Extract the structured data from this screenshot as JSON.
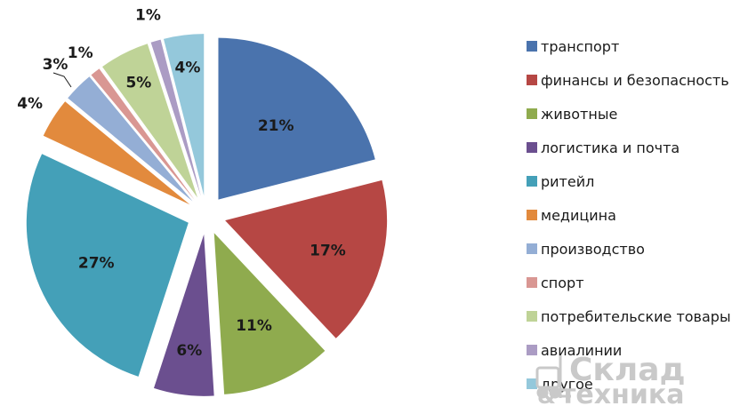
{
  "chart_data": {
    "type": "pie",
    "exploded": true,
    "categories": [
      "транспорт",
      "финансы и безопасность",
      "животные",
      "логистика и почта",
      "ритейл",
      "медицина",
      "производство",
      "спорт",
      "потребительские товары",
      "авиалинии",
      "другое"
    ],
    "values": [
      21,
      17,
      11,
      6,
      27,
      4,
      3,
      1,
      5,
      1,
      4
    ],
    "labels": [
      "21%",
      "17%",
      "11%",
      "6%",
      "27%",
      "4%",
      "3%",
      "1%",
      "5%",
      "1%",
      "4%"
    ],
    "colors": [
      "#4a73ad",
      "#b64744",
      "#8fab4e",
      "#6b4f8f",
      "#44a0b8",
      "#e28a3d",
      "#94aed5",
      "#d99793",
      "#bfd397",
      "#ab9cc4",
      "#94c8db"
    ],
    "legend_position": "right"
  },
  "watermark": {
    "line1": "Склад",
    "line2": "техника",
    "ampersand": "&",
    "icon": "forklift-icon"
  }
}
